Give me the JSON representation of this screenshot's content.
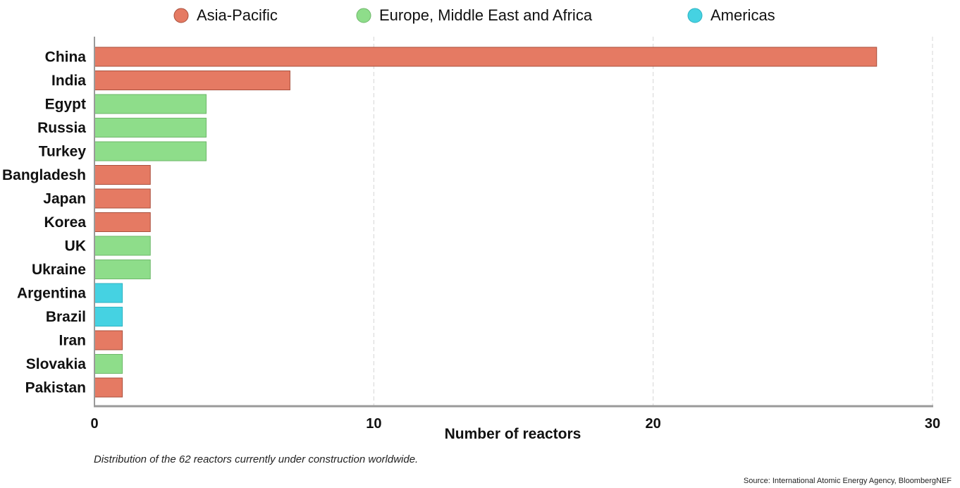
{
  "chart_data": {
    "type": "bar",
    "orientation": "horizontal",
    "categories": [
      "China",
      "India",
      "Egypt",
      "Russia",
      "Turkey",
      "Bangladesh",
      "Japan",
      "Korea",
      "UK",
      "Ukraine",
      "Argentina",
      "Brazil",
      "Iran",
      "Slovakia",
      "Pakistan"
    ],
    "values": [
      28,
      7,
      4,
      4,
      4,
      2,
      2,
      2,
      2,
      2,
      1,
      1,
      1,
      1,
      1
    ],
    "regions": [
      "Asia-Pacific",
      "Asia-Pacific",
      "Europe, Middle East and Africa",
      "Europe, Middle East and Africa",
      "Europe, Middle East and Africa",
      "Asia-Pacific",
      "Asia-Pacific",
      "Asia-Pacific",
      "Europe, Middle East and Africa",
      "Europe, Middle East and Africa",
      "Americas",
      "Americas",
      "Asia-Pacific",
      "Europe, Middle East and Africa",
      "Asia-Pacific"
    ],
    "legend": [
      {
        "name": "Asia-Pacific",
        "color": "#e57a63"
      },
      {
        "name": "Europe, Middle East and Africa",
        "color": "#8edd8a"
      },
      {
        "name": "Americas",
        "color": "#45d2e2"
      }
    ],
    "xlabel": "Number of reactors",
    "ylabel": "",
    "xlim": [
      0,
      30
    ],
    "xticks": [
      0,
      10,
      20,
      30
    ],
    "grid": "vertical dashed",
    "legend_position": "top"
  },
  "caption": "Distribution of the 62 reactors currently under construction worldwide.",
  "source": "Source: International Atomic Energy Agency, BloombergNEF"
}
